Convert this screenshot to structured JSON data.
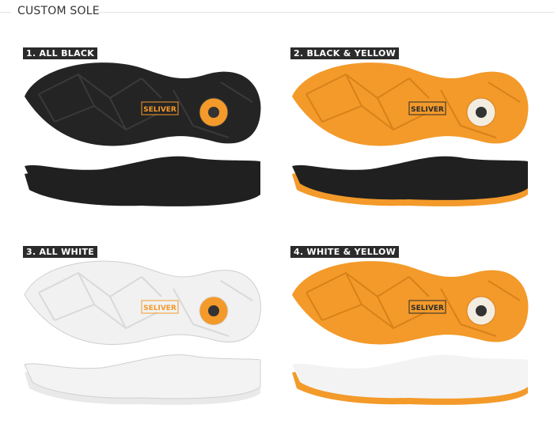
{
  "header": {
    "title": "CUSTOM SOLE"
  },
  "variants": [
    {
      "label": "1. ALL BLACK",
      "brand": "SELIVER",
      "colors": {
        "sole": "#242424",
        "lines": "#3a3a3a",
        "logo": "#f39a2a",
        "disc": "#f39a2a",
        "side": "#202020",
        "base": "#202020"
      }
    },
    {
      "label": "2. BLACK & YELLOW",
      "brand": "SELIVER",
      "colors": {
        "sole": "#f39a2a",
        "lines": "#d9801a",
        "logo": "#2a2a2a",
        "disc": "#f3ece0",
        "side": "#202020",
        "base": "#f39a2a"
      }
    },
    {
      "label": "3. ALL WHITE",
      "brand": "SELIVER",
      "colors": {
        "sole": "#f1f1f1",
        "lines": "#d9d9d9",
        "logo": "#f39a2a",
        "disc": "#f39a2a",
        "side": "#f3f3f3",
        "base": "#e9e9e9"
      }
    },
    {
      "label": "4. WHITE & YELLOW",
      "brand": "SELIVER",
      "colors": {
        "sole": "#f39a2a",
        "lines": "#d9801a",
        "logo": "#2a2a2a",
        "disc": "#f3ece0",
        "side": "#f3f3f3",
        "base": "#f39a2a"
      }
    }
  ]
}
